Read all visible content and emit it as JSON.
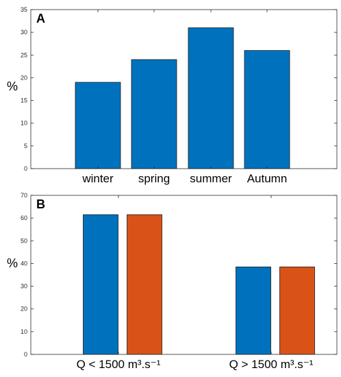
{
  "chart_data": [
    {
      "type": "bar",
      "panel_label": "A",
      "ylabel": "%",
      "categories": [
        "winter",
        "spring",
        "summer",
        "Autumn"
      ],
      "series": [
        {
          "values": [
            19,
            24,
            31,
            26
          ],
          "color": "#0072BD"
        }
      ],
      "ylim": [
        0,
        35
      ],
      "yticks": [
        0,
        5,
        10,
        15,
        20,
        25,
        30,
        35
      ],
      "grid": false,
      "legend": "none"
    },
    {
      "type": "bar",
      "panel_label": "B",
      "ylabel": "%",
      "categories": [
        "Q < 1500 m³.s⁻¹",
        "Q > 1500 m³.s⁻¹"
      ],
      "series": [
        {
          "values": [
            61.5,
            38.5
          ],
          "color": "#0072BD"
        },
        {
          "values": [
            61.5,
            38.5
          ],
          "color": "#D95319"
        }
      ],
      "ylim": [
        0,
        70
      ],
      "yticks": [
        0,
        10,
        20,
        30,
        40,
        50,
        60,
        70
      ],
      "grid": false,
      "legend": "none"
    }
  ]
}
